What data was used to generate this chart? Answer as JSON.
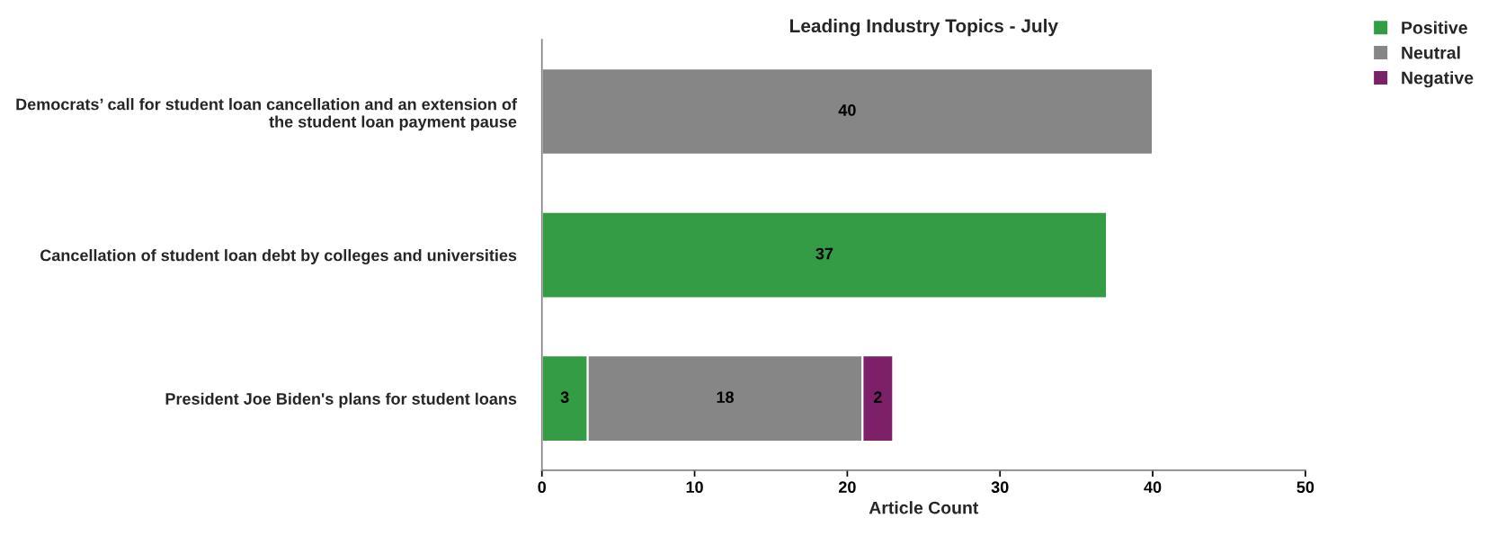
{
  "chart_data": {
    "type": "bar",
    "orientation": "horizontal",
    "stacked": true,
    "title": "Leading Industry Topics - July",
    "xlabel": "Article Count",
    "categories": [
      "Democrats’ call for student loan cancellation and an extension of the student loan payment pause",
      "Cancellation of student loan debt by colleges and universities",
      "President Joe Biden's plans for student loans"
    ],
    "series": [
      {
        "name": "Positive",
        "color": "#339c45",
        "values": [
          null,
          37,
          3
        ]
      },
      {
        "name": "Neutral",
        "color": "#868686",
        "values": [
          40,
          null,
          18
        ]
      },
      {
        "name": "Negative",
        "color": "#7b2069",
        "values": [
          null,
          null,
          2
        ]
      }
    ],
    "xlim": [
      0,
      50
    ],
    "xticks": [
      0,
      10,
      20,
      30,
      40,
      50
    ],
    "grid": false,
    "legend": "top right",
    "data_labels": true
  }
}
